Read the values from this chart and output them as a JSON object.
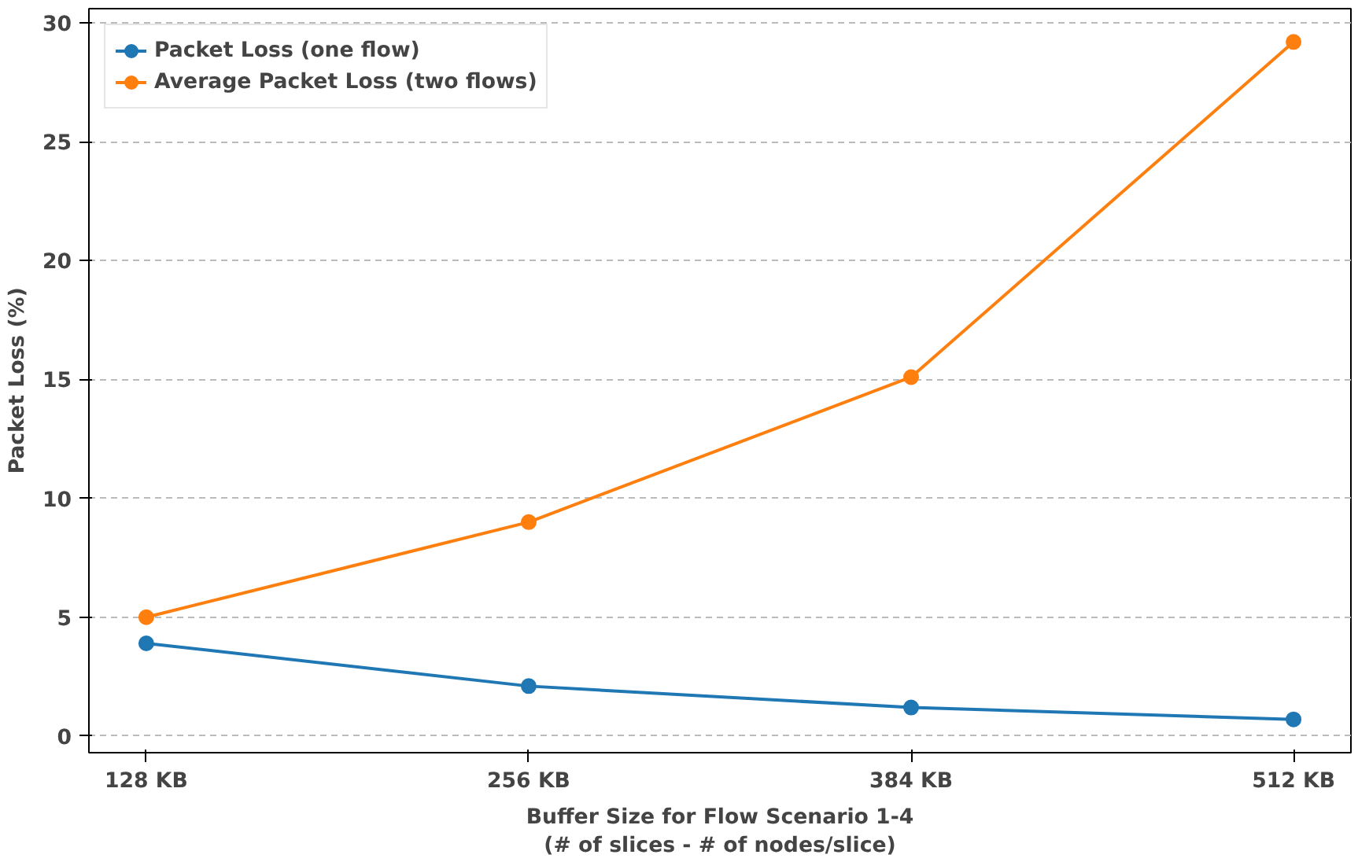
{
  "chart_data": {
    "type": "line",
    "xlabel": "Buffer Size for Flow Scenario 1-4\n(# of slices - # of nodes/slice)",
    "ylabel": "Packet Loss (%)",
    "categories": [
      "128 KB",
      "256 KB",
      "384 KB",
      "512 KB"
    ],
    "series": [
      {
        "name": "Packet Loss (one flow)",
        "color": "#1f77b4",
        "values": [
          3.9,
          2.1,
          1.2,
          0.7
        ]
      },
      {
        "name": "Average Packet Loss (two flows)",
        "color": "#ff7f0e",
        "values": [
          5.0,
          9.0,
          15.1,
          29.2
        ]
      }
    ],
    "ylim": [
      -0.7,
      30.6
    ],
    "yticks": [
      0,
      5,
      10,
      15,
      20,
      25,
      30
    ],
    "grid": "y",
    "legend": "top left",
    "marker": "circle",
    "line_style": "solid"
  }
}
